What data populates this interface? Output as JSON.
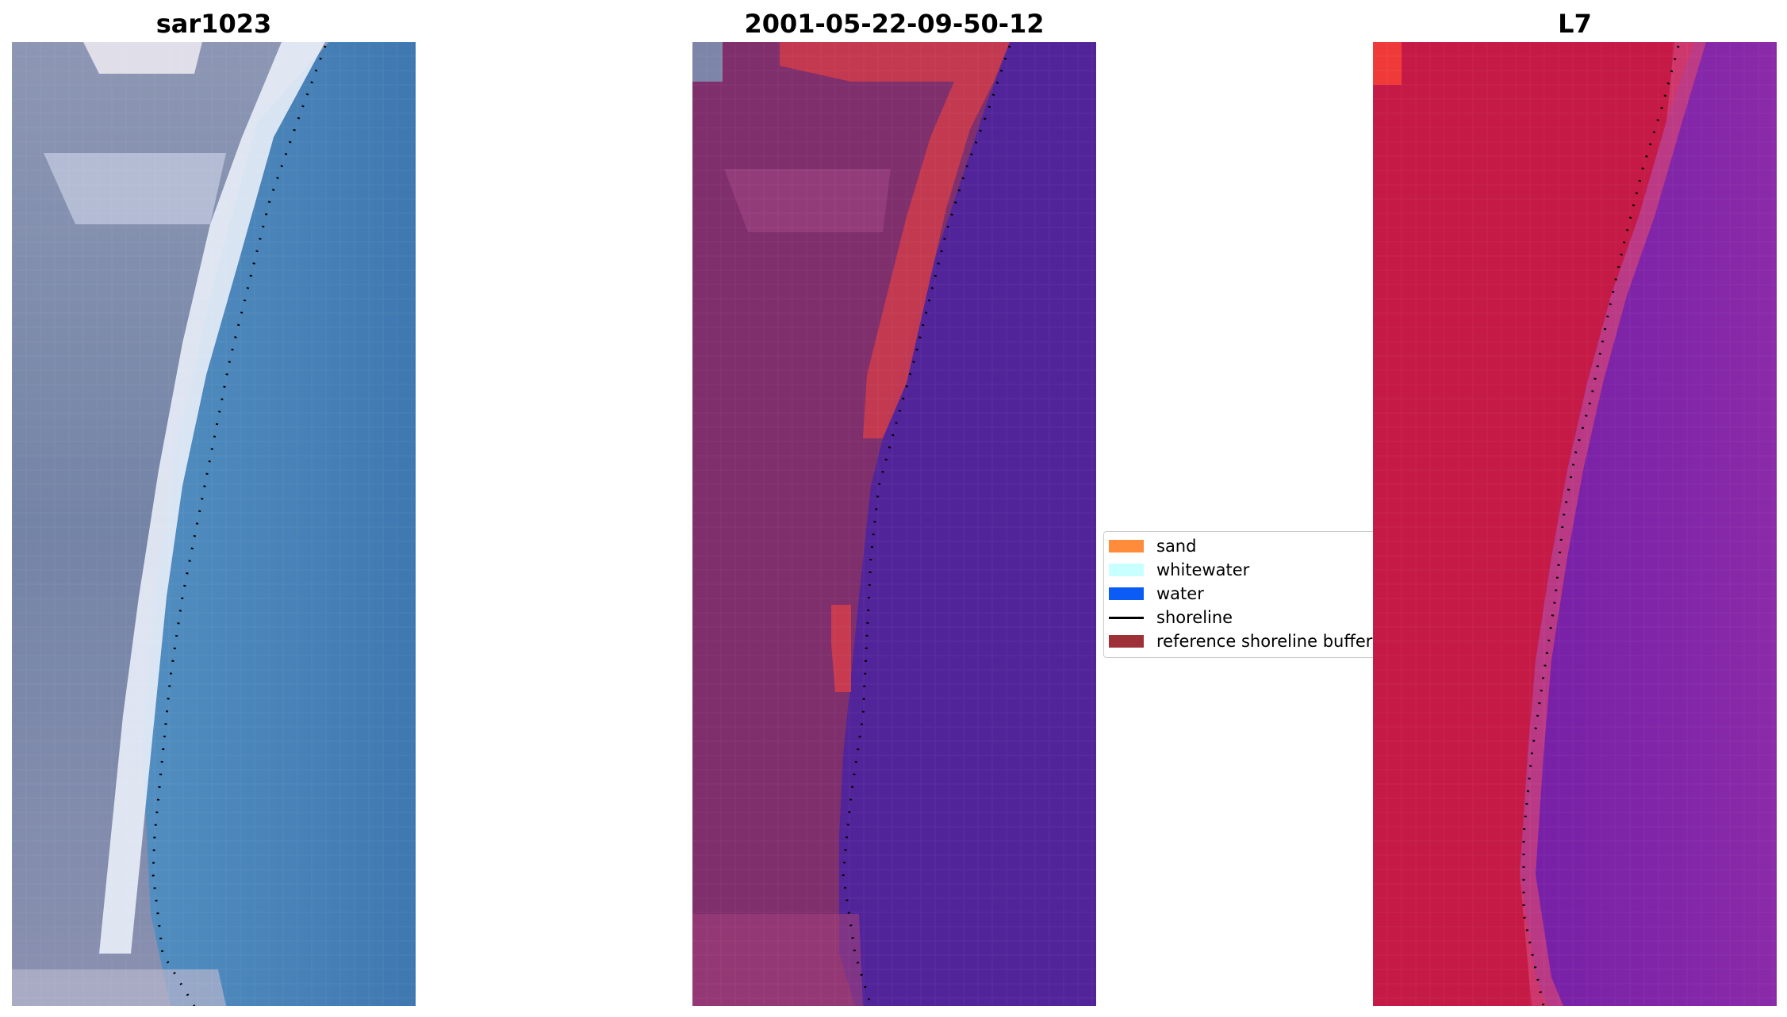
{
  "panels": [
    {
      "title": "sar1023",
      "image": "true-color-satellite-view"
    },
    {
      "title": "2001-05-22-09-50-12",
      "image": "classified-overlay"
    },
    {
      "title": "L7",
      "image": "index-colormap-view"
    }
  ],
  "legend": {
    "items": [
      {
        "label": "sand",
        "color": "#ff8c3a",
        "kind": "patch"
      },
      {
        "label": "whitewater",
        "color": "#c8ffff",
        "kind": "patch"
      },
      {
        "label": "water",
        "color": "#0b5cf5",
        "kind": "patch"
      },
      {
        "label": "shoreline",
        "color": "#000000",
        "kind": "line"
      },
      {
        "label": "reference shoreline buffer",
        "color": "#9e3037",
        "kind": "patch"
      }
    ]
  },
  "colors": {
    "rgb_land": "#7b89a8",
    "rgb_sand": "#eef3ff",
    "rgb_water": "#4a83b8",
    "class_land": "#7f2f6c",
    "class_buffer": "#c73a4f",
    "class_water": "#52249a",
    "index_land": "#c51a45",
    "index_water": "#7a1ea8"
  }
}
